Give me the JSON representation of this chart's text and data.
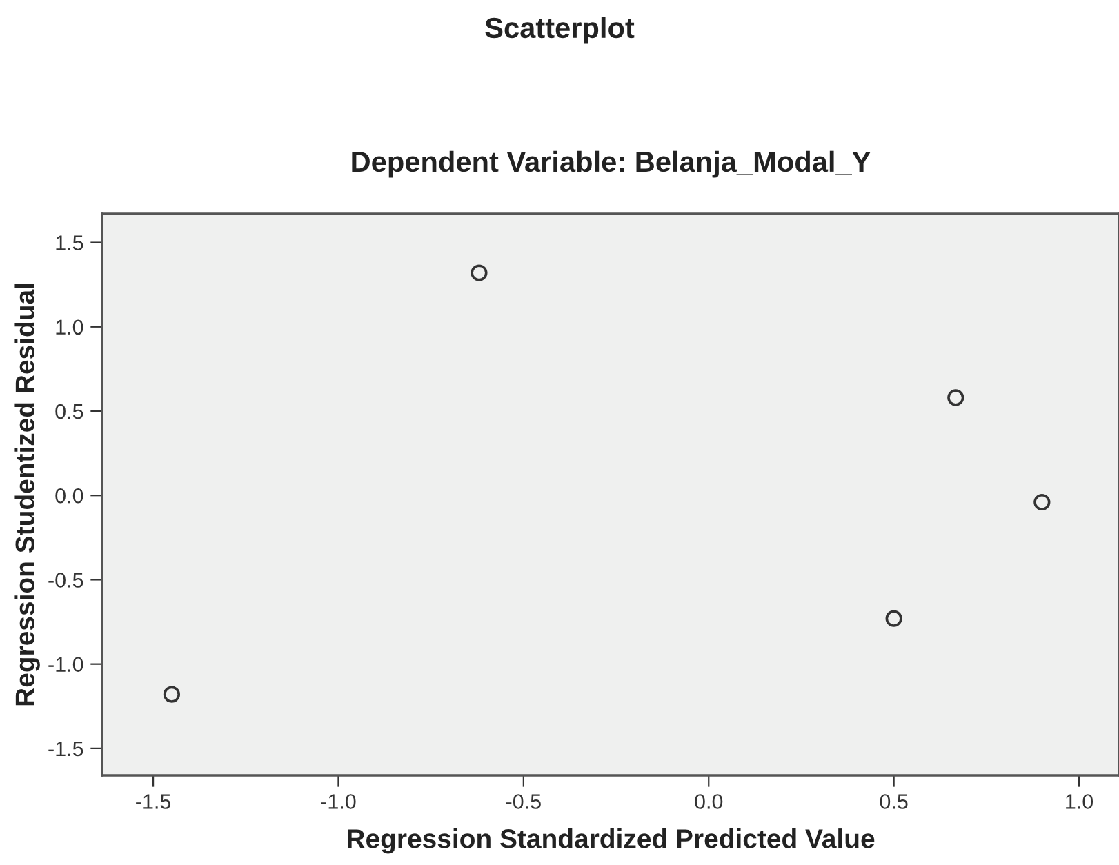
{
  "chart_data": {
    "type": "scatter",
    "title": "Scatterplot",
    "subtitle": "Dependent Variable: Belanja_Modal_Y",
    "xlabel": "Regression Standardized Predicted Value",
    "ylabel": "Regression Studentized Residual",
    "x": [
      -1.45,
      -0.62,
      0.667,
      0.9,
      0.5
    ],
    "series": [
      {
        "color": "#333333",
        "values": [
          -1.18,
          1.32,
          0.58,
          -0.04,
          -0.73
        ]
      }
    ],
    "marker": "circle",
    "xlim": [
      -1.638,
      1.108
    ],
    "ylim": [
      -1.66,
      1.67
    ],
    "xticks": [
      -1.5,
      {
        "value": -1,
        "label": "-1.0"
      },
      -0.5,
      {
        "value": 0,
        "label": "0.0"
      },
      0.5,
      {
        "value": 1,
        "label": "1.0"
      }
    ],
    "yticks": [
      -1.5,
      {
        "value": -1,
        "label": "-1.0"
      },
      -0.5,
      {
        "value": 0,
        "label": "0.0"
      },
      0.5,
      {
        "value": 1,
        "label": "1.0"
      },
      1.5
    ],
    "grid": false,
    "legend": false
  }
}
